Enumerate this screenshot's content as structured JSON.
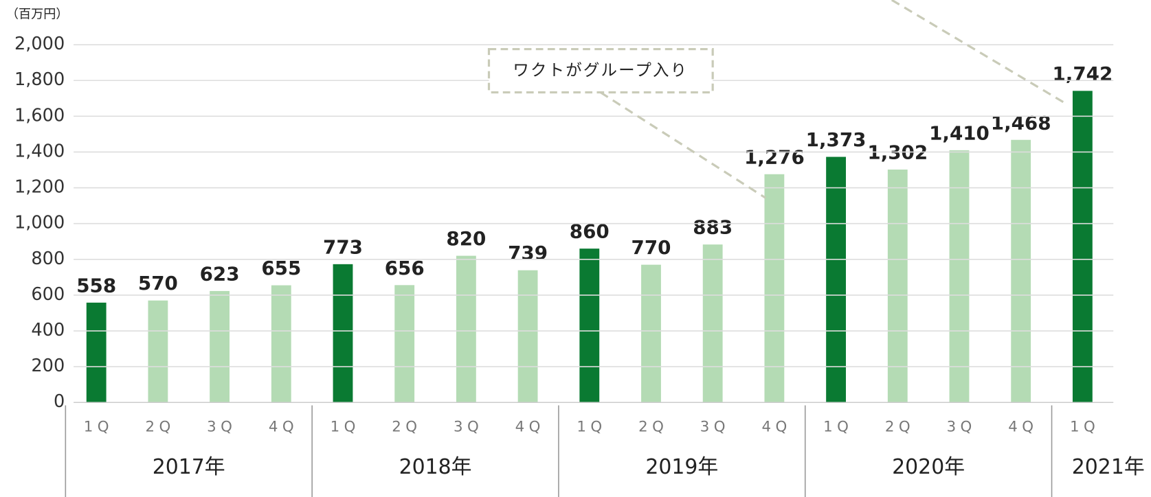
{
  "chart_data": {
    "type": "bar",
    "y_unit": "（百万円）",
    "annotation": "ワクトがグループ入り",
    "groups": [
      {
        "label": "2017年",
        "categories": [
          "1Q",
          "2Q",
          "3Q",
          "4Q"
        ]
      },
      {
        "label": "2018年",
        "categories": [
          "1Q",
          "2Q",
          "3Q",
          "4Q"
        ]
      },
      {
        "label": "2019年",
        "categories": [
          "1Q",
          "2Q",
          "3Q",
          "4Q"
        ]
      },
      {
        "label": "2020年",
        "categories": [
          "1Q",
          "2Q",
          "3Q",
          "4Q"
        ]
      },
      {
        "label": "2021年",
        "categories": [
          "1Q"
        ]
      }
    ],
    "values": [
      558,
      570,
      623,
      655,
      773,
      656,
      820,
      739,
      860,
      770,
      883,
      1276,
      1373,
      1302,
      1410,
      1468,
      1742
    ],
    "value_labels": [
      "558",
      "570",
      "623",
      "655",
      "773",
      "656",
      "820",
      "739",
      "860",
      "770",
      "883",
      "1,276",
      "1,373",
      "1,302",
      "1,410",
      "1,468",
      "1,742"
    ],
    "colors": [
      "#0a7a32",
      "#b4dbb4",
      "#b4dbb4",
      "#b4dbb4",
      "#0a7a32",
      "#b4dbb4",
      "#b4dbb4",
      "#b4dbb4",
      "#0a7a32",
      "#b4dbb4",
      "#b4dbb4",
      "#b4dbb4",
      "#0a7a32",
      "#b4dbb4",
      "#b4dbb4",
      "#b4dbb4",
      "#0a7a32"
    ],
    "ylim": [
      0,
      2000
    ],
    "yticks": [
      0,
      200,
      400,
      600,
      800,
      {
        "value": 1000,
        "label": "1,000"
      },
      {
        "value": 1200,
        "label": "1,200"
      },
      {
        "value": 1400,
        "label": "1,400"
      },
      {
        "value": 1600,
        "label": "1,600"
      },
      {
        "value": 1800,
        "label": "1,800"
      },
      {
        "value": 2000,
        "label": "2,000"
      }
    ],
    "grid": true
  }
}
